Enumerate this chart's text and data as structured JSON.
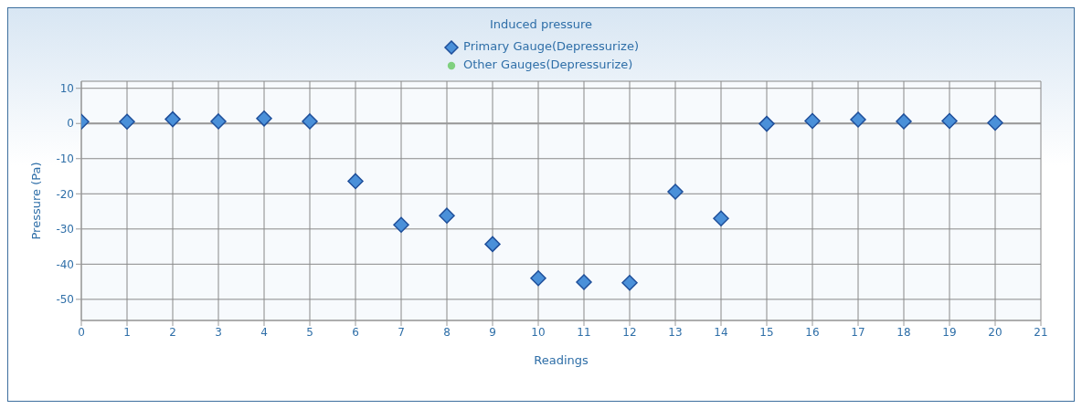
{
  "chart_data": {
    "type": "scatter",
    "title": "Induced pressure",
    "xlabel": "Readings",
    "ylabel": "Pressure (Pa)",
    "x": [
      0,
      1,
      2,
      3,
      4,
      5,
      6,
      7,
      8,
      9,
      10,
      11,
      12,
      13,
      14,
      15,
      16,
      17,
      18,
      19,
      20
    ],
    "series": [
      {
        "name": "Primary Gauge(Depressurize)",
        "color": "#4a90d9",
        "marker": "diamond",
        "values": [
          0.5,
          0.5,
          1.2,
          0.6,
          1.4,
          0.6,
          -16.4,
          -28.8,
          -26.2,
          -34.3,
          -44,
          -45.1,
          -45.3,
          -19.4,
          -27,
          -0.1,
          0.7,
          1.1,
          0.6,
          0.7,
          0.2
        ]
      },
      {
        "name": "Other Gauges(Depressurize)",
        "color": "#7fd07f",
        "marker": "circle",
        "values": [
          null,
          null,
          null,
          null,
          null,
          null,
          null,
          null,
          null,
          null,
          null,
          null,
          null,
          null,
          null,
          null,
          null,
          null,
          null,
          null,
          null
        ]
      }
    ],
    "xlim": [
      0,
      21
    ],
    "xticks": [
      0,
      1,
      2,
      3,
      4,
      5,
      6,
      7,
      8,
      9,
      10,
      11,
      12,
      13,
      14,
      15,
      16,
      17,
      18,
      19,
      20,
      21
    ],
    "ylim": [
      -56,
      12
    ],
    "yticks": [
      -50,
      -40,
      -30,
      -20,
      -10,
      0,
      10
    ],
    "grid": true,
    "legend": "top"
  }
}
